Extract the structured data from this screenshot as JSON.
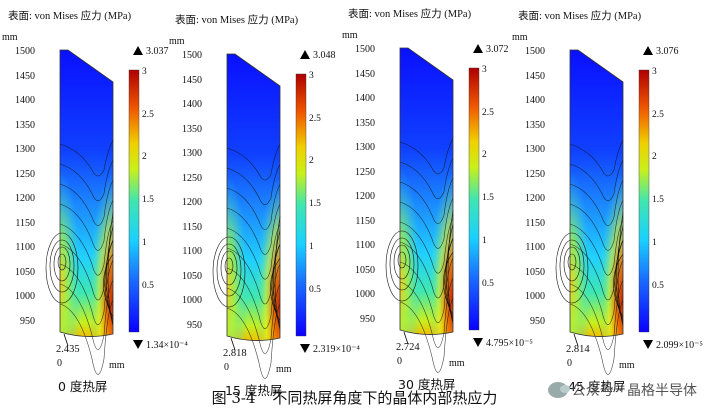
{
  "panels": [
    {
      "title": "表面: von Mises 应力 (MPa)",
      "max": "3.037",
      "min": "1.34×10⁻⁴",
      "annotation": "2.435",
      "caption": "0 度热屏",
      "y_ticks": [
        "1500",
        "1450",
        "1400",
        "1350",
        "1300",
        "1250",
        "1200",
        "1150",
        "1100",
        "1050",
        "1000",
        "950"
      ],
      "x_ticks": [
        "0"
      ],
      "x_unit": "mm",
      "y_unit": "mm",
      "colorbar_ticks": [
        "3",
        "2.5",
        "2",
        "1.5",
        "1",
        "0.5"
      ]
    },
    {
      "title": "表面: von Mises 应力 (MPa)",
      "max": "3.048",
      "min": "2.319×10⁻⁴",
      "annotation": "2.818",
      "caption": "15 度热屏",
      "y_ticks": [
        "1500",
        "1450",
        "1400",
        "1350",
        "1300",
        "1250",
        "1200",
        "1150",
        "1100",
        "1050",
        "1000",
        "950"
      ],
      "x_ticks": [
        "0"
      ],
      "x_unit": "mm",
      "y_unit": "mm",
      "colorbar_ticks": [
        "3",
        "2.5",
        "2",
        "1.5",
        "1",
        "0.5"
      ]
    },
    {
      "title": "表面: von Mises 应力 (MPa)",
      "max": "3.072",
      "min": "4.795×10⁻⁵",
      "annotation": "2.724",
      "caption": "30 度热屏",
      "y_ticks": [
        "1500",
        "1450",
        "1400",
        "1350",
        "1300",
        "1250",
        "1200",
        "1150",
        "1100",
        "1050",
        "1000",
        "950"
      ],
      "x_ticks": [
        "0"
      ],
      "x_unit": "mm",
      "y_unit": "mm",
      "colorbar_ticks": [
        "3",
        "2.5",
        "2",
        "1.5",
        "1",
        "0.5"
      ]
    },
    {
      "title": "表面: von Mises 应力 (MPa)",
      "max": "3.076",
      "min": "2.099×10⁻⁵",
      "annotation": "2.814",
      "caption": "45 度热屏",
      "y_ticks": [
        "1500",
        "1450",
        "1400",
        "1350",
        "1300",
        "1250",
        "1200",
        "1150",
        "1100",
        "1050",
        "1000",
        "950"
      ],
      "x_ticks": [
        "0"
      ],
      "x_unit": "mm",
      "y_unit": "mm",
      "colorbar_ticks": [
        "3",
        "2.5",
        "2",
        "1.5",
        "1",
        "0.5"
      ]
    }
  ],
  "figure": {
    "number": "图 3-4",
    "title": "不同热屏角度下的晶体内部热应力"
  },
  "watermark": "公众号 · 晶格半导体",
  "colors": {
    "low": "#1a1aff",
    "mid": "#33e6cc",
    "yellow": "#e6f01a",
    "high": "#cc2200"
  }
}
